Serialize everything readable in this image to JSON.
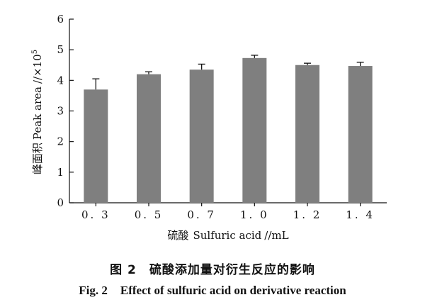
{
  "chart_data": {
    "type": "bar",
    "categories": [
      "0. 3",
      "0. 5",
      "0. 7",
      "1. 0",
      "1. 2",
      "1. 4"
    ],
    "values": [
      3.7,
      4.2,
      4.35,
      4.73,
      4.5,
      4.47
    ],
    "errors": [
      0.35,
      0.08,
      0.18,
      0.09,
      0.06,
      0.12
    ],
    "ylim": [
      0,
      6
    ],
    "yticks": [
      0,
      1,
      2,
      3,
      4,
      5,
      6
    ],
    "ylabel_cn": "峰面积",
    "ylabel_en": "Peak area",
    "ylabel_unit": "//×10",
    "ylabel_exp": "5",
    "xlabel_cn": "硫酸",
    "xlabel_en": "Sulfuric acid",
    "xlabel_unit": "//mL",
    "bar_color": "#7f7f7f",
    "grid": false
  },
  "caption": {
    "cn_number": "图 2",
    "cn_text": "硫酸添加量对衍生反应的影响",
    "en_number": "Fig. 2",
    "en_text": "Effect of sulfuric acid on derivative reaction"
  }
}
